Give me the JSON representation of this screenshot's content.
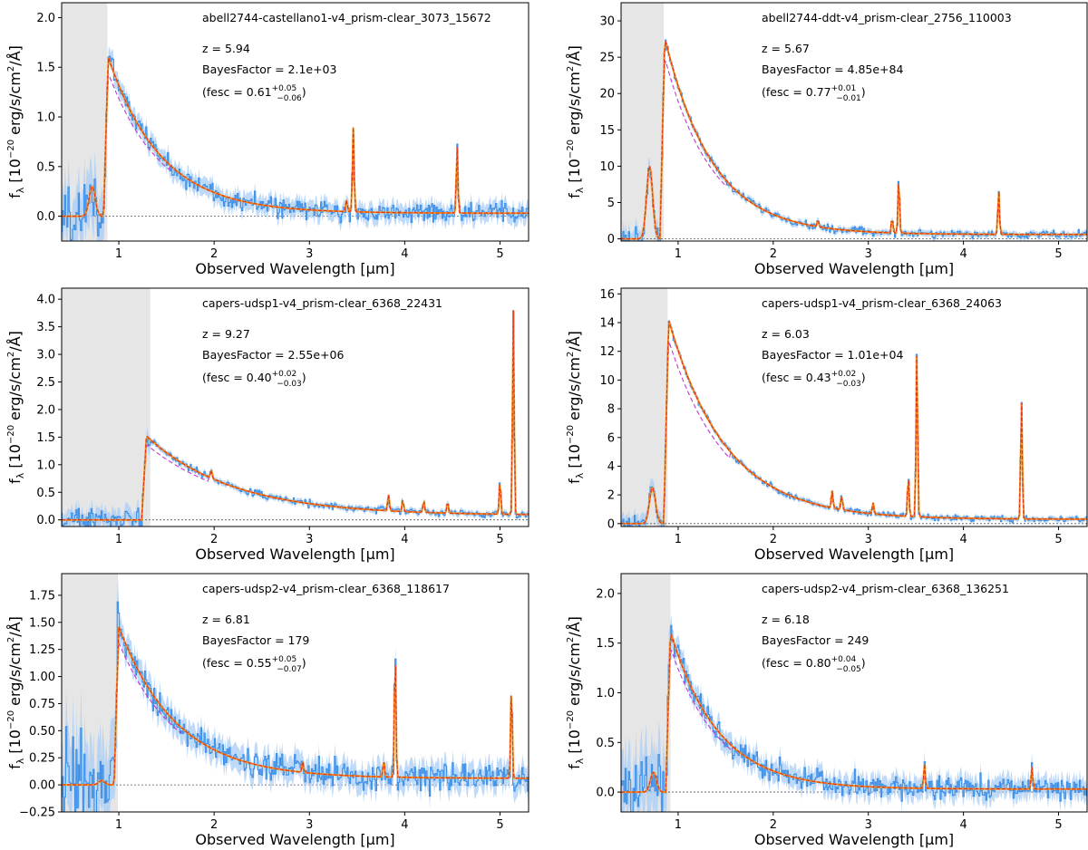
{
  "figure": {
    "xlabel": "Observed Wavelength [μm]",
    "ylabel_main": "f",
    "ylabel_sub": "λ",
    "ylabel_rest": " [10",
    "ylabel_exp": "−20",
    "ylabel_units": " erg/s/cm",
    "ylabel_sq": "2",
    "ylabel_end": "/Å]",
    "colors": {
      "data_step": "#3b8fe8",
      "error_band": "#a9cdf5",
      "model_solid": "#f5921e",
      "model_red_dashed": "#e0301e",
      "model_purple_dashed": "#c03ad0",
      "masked_region": "#e6e6e6",
      "zero_line": "#555555"
    }
  },
  "chart_data": [
    {
      "type": "line",
      "title": "abell2744-castellano1-v4_prism-clear_3073_15672",
      "z_label": "z = 5.94",
      "bayes_label": "BayesFactor = 2.1e+03",
      "fesc_prefix": "(fesc = 0.61",
      "fesc_plus": "+0.05",
      "fesc_minus": "−0.06",
      "fesc_suffix": ")",
      "redshift": 5.94,
      "break_um": 0.84,
      "peak_flux": 1.75,
      "decay_um": 0.55,
      "continuum_floor": 0.03,
      "noise": 0.1,
      "masked_range_um": [
        0.4,
        0.88
      ],
      "xlim": [
        0.4,
        5.3
      ],
      "ylim": [
        -0.25,
        2.15
      ],
      "xticks": [
        1,
        2,
        3,
        4,
        5
      ],
      "yticks": [
        0.0,
        0.5,
        1.0,
        1.5,
        2.0
      ],
      "ytick_labels": [
        "0.0",
        "0.5",
        "1.0",
        "1.5",
        "2.0"
      ],
      "emission_lines": [
        {
          "x_um": 3.46,
          "flux": 0.85
        },
        {
          "x_um": 3.39,
          "flux": 0.12
        },
        {
          "x_um": 4.55,
          "flux": 0.68
        }
      ],
      "lya_bump": {
        "x_um": 0.72,
        "flux": 0.3
      }
    },
    {
      "type": "line",
      "title": "abell2744-ddt-v4_prism-clear_2756_110003",
      "z_label": "z = 5.67",
      "bayes_label": "BayesFactor = 4.85e+84",
      "fesc_prefix": "(fesc = 0.77",
      "fesc_plus": "+0.01",
      "fesc_minus": "−0.01",
      "fesc_suffix": ")",
      "redshift": 5.67,
      "break_um": 0.81,
      "peak_flux": 30.5,
      "decay_um": 0.5,
      "continuum_floor": 0.6,
      "noise": 0.5,
      "masked_range_um": [
        0.4,
        0.85
      ],
      "xlim": [
        0.4,
        5.3
      ],
      "ylim": [
        -0.3,
        32.5
      ],
      "xticks": [
        1,
        2,
        3,
        4,
        5
      ],
      "yticks": [
        0,
        5,
        10,
        15,
        20,
        25,
        30
      ],
      "ytick_labels": [
        "0",
        "5",
        "10",
        "15",
        "20",
        "25",
        "30"
      ],
      "emission_lines": [
        {
          "x_um": 3.32,
          "flux": 7.5
        },
        {
          "x_um": 3.25,
          "flux": 2.0
        },
        {
          "x_um": 4.37,
          "flux": 6.0
        },
        {
          "x_um": 2.47,
          "flux": 0.9
        }
      ],
      "lya_bump": {
        "x_um": 0.7,
        "flux": 10.0
      }
    },
    {
      "type": "line",
      "title": "capers-udsp1-v4_prism-clear_6368_22431",
      "z_label": "z = 9.27",
      "bayes_label": "BayesFactor = 2.55e+06",
      "fesc_prefix": "(fesc = 0.40",
      "fesc_plus": "+0.02",
      "fesc_minus": "−0.03",
      "fesc_suffix": ")",
      "redshift": 9.27,
      "break_um": 1.24,
      "peak_flux": 1.6,
      "decay_um": 0.9,
      "continuum_floor": 0.08,
      "noise": 0.06,
      "masked_range_um": [
        0.4,
        1.33
      ],
      "xlim": [
        0.4,
        5.3
      ],
      "ylim": [
        -0.12,
        4.2
      ],
      "xticks": [
        1,
        2,
        3,
        4,
        5
      ],
      "yticks": [
        0.0,
        0.5,
        1.0,
        1.5,
        2.0,
        2.5,
        3.0,
        3.5,
        4.0
      ],
      "ytick_labels": [
        "0.0",
        "0.5",
        "1.0",
        "1.5",
        "2.0",
        "2.5",
        "3.0",
        "3.5",
        "4.0"
      ],
      "emission_lines": [
        {
          "x_um": 5.14,
          "flux": 3.7
        },
        {
          "x_um": 5.0,
          "flux": 0.6
        },
        {
          "x_um": 3.83,
          "flux": 0.3
        },
        {
          "x_um": 3.98,
          "flux": 0.2
        },
        {
          "x_um": 4.2,
          "flux": 0.2
        },
        {
          "x_um": 4.45,
          "flux": 0.2
        },
        {
          "x_um": 1.97,
          "flux": 0.15
        }
      ],
      "lya_bump": null
    },
    {
      "type": "line",
      "title": "capers-udsp1-v4_prism-clear_6368_24063",
      "z_label": "z = 6.03",
      "bayes_label": "BayesFactor = 1.01e+04",
      "fesc_prefix": "(fesc = 0.43",
      "fesc_plus": "+0.02",
      "fesc_minus": "−0.03",
      "fesc_suffix": ")",
      "redshift": 6.03,
      "break_um": 0.85,
      "peak_flux": 15.4,
      "decay_um": 0.6,
      "continuum_floor": 0.3,
      "noise": 0.2,
      "masked_range_um": [
        0.4,
        0.89
      ],
      "xlim": [
        0.4,
        5.3
      ],
      "ylim": [
        -0.2,
        16.4
      ],
      "xticks": [
        1,
        2,
        3,
        4,
        5
      ],
      "yticks": [
        0,
        2,
        4,
        6,
        8,
        10,
        12,
        14,
        16
      ],
      "ytick_labels": [
        "0",
        "2",
        "4",
        "6",
        "8",
        "10",
        "12",
        "14",
        "16"
      ],
      "emission_lines": [
        {
          "x_um": 3.51,
          "flux": 11.5
        },
        {
          "x_um": 3.42,
          "flux": 2.8
        },
        {
          "x_um": 4.61,
          "flux": 8.3
        },
        {
          "x_um": 2.62,
          "flux": 1.2
        },
        {
          "x_um": 2.72,
          "flux": 1.0
        },
        {
          "x_um": 3.05,
          "flux": 0.8
        }
      ],
      "lya_bump": {
        "x_um": 0.73,
        "flux": 2.5
      }
    },
    {
      "type": "line",
      "title": "capers-udsp2-v4_prism-clear_6368_118617",
      "z_label": "z = 6.81",
      "bayes_label": "BayesFactor = 179",
      "fesc_prefix": "(fesc = 0.55",
      "fesc_plus": "+0.05",
      "fesc_minus": "−0.07",
      "fesc_suffix": ")",
      "redshift": 6.81,
      "break_um": 0.95,
      "peak_flux": 1.58,
      "decay_um": 0.6,
      "continuum_floor": 0.06,
      "noise": 0.13,
      "masked_range_um": [
        0.4,
        0.99
      ],
      "xlim": [
        0.4,
        5.3
      ],
      "ylim": [
        -0.25,
        1.95
      ],
      "xticks": [
        1,
        2,
        3,
        4,
        5
      ],
      "yticks": [
        -0.25,
        0.0,
        0.25,
        0.5,
        0.75,
        1.0,
        1.25,
        1.5,
        1.75
      ],
      "ytick_labels": [
        "−0.25",
        "0.00",
        "0.25",
        "0.50",
        "0.75",
        "1.00",
        "1.25",
        "1.50",
        "1.75"
      ],
      "emission_lines": [
        {
          "x_um": 3.9,
          "flux": 1.15
        },
        {
          "x_um": 3.78,
          "flux": 0.15
        },
        {
          "x_um": 5.12,
          "flux": 0.85
        },
        {
          "x_um": 2.93,
          "flux": 0.1
        }
      ],
      "lya_bump": {
        "x_um": 0.82,
        "flux": 0.04
      }
    },
    {
      "type": "line",
      "title": "capers-udsp2-v4_prism-clear_6368_136251",
      "z_label": "z = 6.18",
      "bayes_label": "BayesFactor = 249",
      "fesc_prefix": "(fesc = 0.80",
      "fesc_plus": "+0.04",
      "fesc_minus": "−0.05",
      "fesc_suffix": ")",
      "redshift": 6.18,
      "break_um": 0.87,
      "peak_flux": 1.78,
      "decay_um": 0.5,
      "continuum_floor": 0.03,
      "noise": 0.12,
      "masked_range_um": [
        0.4,
        0.92
      ],
      "xlim": [
        0.4,
        5.3
      ],
      "ylim": [
        -0.2,
        2.2
      ],
      "xticks": [
        1,
        2,
        3,
        4,
        5
      ],
      "yticks": [
        0.0,
        0.5,
        1.0,
        1.5,
        2.0
      ],
      "ytick_labels": [
        "0.0",
        "0.5",
        "1.0",
        "1.5",
        "2.0"
      ],
      "emission_lines": [
        {
          "x_um": 3.59,
          "flux": 0.25
        },
        {
          "x_um": 4.72,
          "flux": 0.22
        }
      ],
      "lya_bump": {
        "x_um": 0.74,
        "flux": 0.2
      }
    }
  ]
}
